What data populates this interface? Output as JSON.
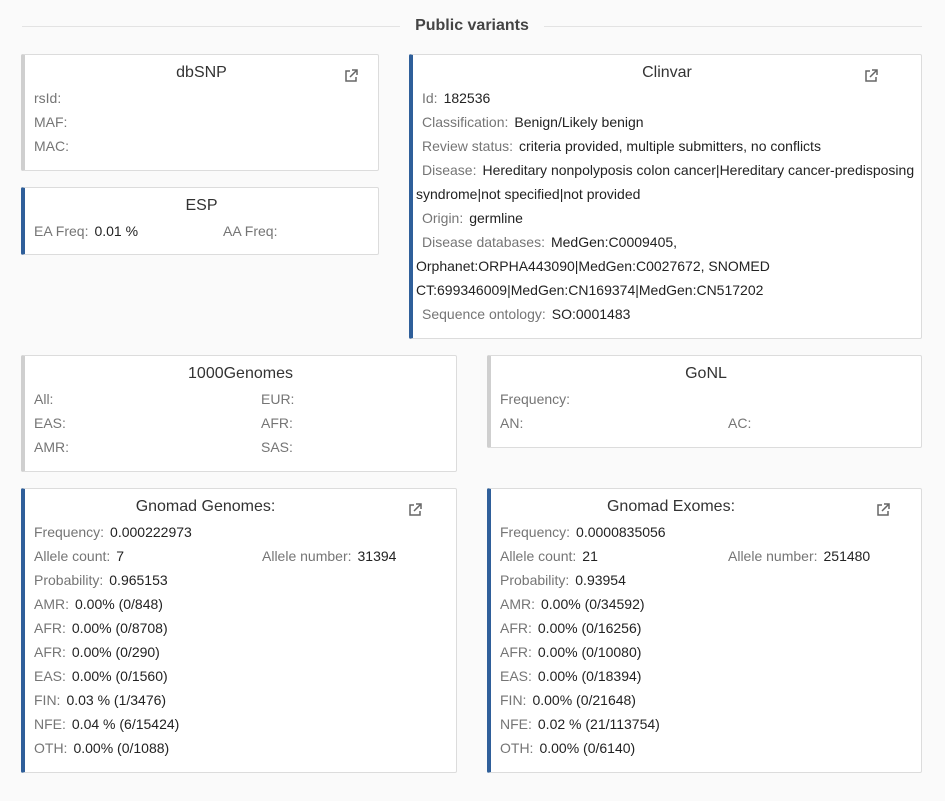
{
  "section_title": "Public variants",
  "dbsnp": {
    "title": "dbSNP",
    "rows": [
      {
        "label": "rsId:",
        "value": ""
      },
      {
        "label": "MAF:",
        "value": ""
      },
      {
        "label": "MAC:",
        "value": ""
      }
    ]
  },
  "esp": {
    "title": "ESP",
    "ea_label": "EA Freq:",
    "ea_value": "0.01 %",
    "aa_label": "AA Freq:",
    "aa_value": ""
  },
  "clinvar": {
    "title": "Clinvar",
    "id_label": "Id:",
    "id_value": "182536",
    "classification_label": "Classification:",
    "classification_value": "Benign/Likely benign",
    "review_label": "Review status:",
    "review_value": "criteria provided, multiple submitters, no conflicts",
    "disease_label": "Disease:",
    "disease_value": "Hereditary nonpolyposis colon cancer|Hereditary cancer-predisposing syndrome|not specified|not provided",
    "origin_label": "Origin:",
    "origin_value": "germline",
    "databases_label": "Disease databases:",
    "databases_value": "MedGen:C0009405, Orphanet:ORPHA443090|MedGen:C0027672, SNOMED CT:699346009|MedGen:CN169374|MedGen:CN517202",
    "ontology_label": "Sequence ontology:",
    "ontology_value": "SO:0001483"
  },
  "thousand_genomes": {
    "title": "1000Genomes",
    "left": [
      {
        "label": "All:",
        "value": ""
      },
      {
        "label": "EAS:",
        "value": ""
      },
      {
        "label": "AMR:",
        "value": ""
      }
    ],
    "right": [
      {
        "label": "EUR:",
        "value": ""
      },
      {
        "label": "AFR:",
        "value": ""
      },
      {
        "label": "SAS:",
        "value": ""
      }
    ]
  },
  "gonl": {
    "title": "GoNL",
    "frequency_label": "Frequency:",
    "frequency_value": "",
    "an_label": "AN:",
    "an_value": "",
    "ac_label": "AC:",
    "ac_value": ""
  },
  "gnomad_genomes": {
    "title": "Gnomad Genomes:",
    "frequency_label": "Frequency:",
    "frequency_value": "0.000222973",
    "allele_count_label": "Allele count:",
    "allele_count_value": "7",
    "allele_number_label": "Allele number:",
    "allele_number_value": "31394",
    "probability_label": "Probability:",
    "probability_value": "0.965153",
    "pops": [
      {
        "label": "AMR:",
        "value": "0.00% (0/848)"
      },
      {
        "label": "AFR:",
        "value": "0.00% (0/8708)"
      },
      {
        "label": "AFR:",
        "value": "0.00% (0/290)"
      },
      {
        "label": "EAS:",
        "value": "0.00% (0/1560)"
      },
      {
        "label": "FIN:",
        "value": "0.03 % (1/3476)"
      },
      {
        "label": "NFE:",
        "value": "0.04 % (6/15424)"
      },
      {
        "label": "OTH:",
        "value": "0.00% (0/1088)"
      }
    ]
  },
  "gnomad_exomes": {
    "title": "Gnomad Exomes:",
    "frequency_label": "Frequency:",
    "frequency_value": "0.0000835056",
    "allele_count_label": "Allele count:",
    "allele_count_value": "21",
    "allele_number_label": "Allele number:",
    "allele_number_value": "251480",
    "probability_label": "Probability:",
    "probability_value": "0.93954",
    "pops": [
      {
        "label": "AMR:",
        "value": "0.00% (0/34592)"
      },
      {
        "label": "AFR:",
        "value": "0.00% (0/16256)"
      },
      {
        "label": "AFR:",
        "value": "0.00% (0/10080)"
      },
      {
        "label": "EAS:",
        "value": "0.00% (0/18394)"
      },
      {
        "label": "FIN:",
        "value": "0.00% (0/21648)"
      },
      {
        "label": "NFE:",
        "value": "0.02 % (21/113754)"
      },
      {
        "label": "OTH:",
        "value": "0.00% (0/6140)"
      }
    ]
  },
  "icons": {
    "external": "external-link-icon"
  },
  "colors": {
    "accent": "#2f5f9a",
    "muted_border": "#cfcfcf"
  }
}
